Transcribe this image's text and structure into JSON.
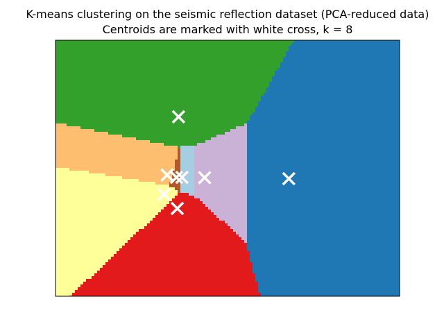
{
  "chart_data": {
    "type": "voronoi",
    "title": "K-means clustering on the seismic reflection dataset (PCA-reduced data)",
    "subtitle": "Centroids are marked with white cross, k = 8",
    "xlabel": "",
    "ylabel": "",
    "xticks": [],
    "yticks": [],
    "grid": false,
    "legend": "none",
    "xlim": [
      -0.22,
      0.44
    ],
    "ylim": [
      -0.22,
      0.27
    ],
    "k": 8,
    "centroids": [
      {
        "x": 0.2275,
        "y": 0.005,
        "color": "#1f78b4"
      },
      {
        "x": 0.016,
        "y": 0.1234,
        "color": "#33a02c"
      },
      {
        "x": -0.006,
        "y": 0.012,
        "color": "#fdbf6f"
      },
      {
        "x": -0.012,
        "y": -0.025,
        "color": "#ffff99"
      },
      {
        "x": 0.0135,
        "y": -0.052,
        "color": "#e31a1c"
      },
      {
        "x": 0.066,
        "y": 0.007,
        "color": "#cab2d6"
      },
      {
        "x": 0.012,
        "y": 0.0075,
        "color": "#b15928"
      },
      {
        "x": 0.0225,
        "y": 0.0075,
        "color": "#a6cee3"
      }
    ],
    "marker_color": "#ffffff",
    "marker": "x"
  }
}
